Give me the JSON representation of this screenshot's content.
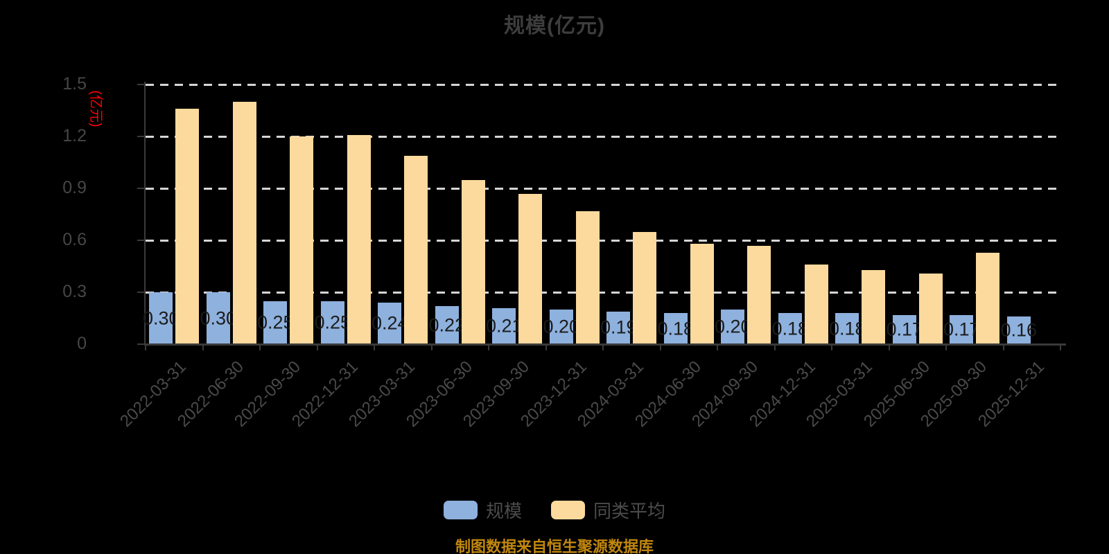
{
  "title": "规模(亿元)",
  "caption": "制图数据来自恒生聚源数据库",
  "y_axis": {
    "unit_label": "(亿元)",
    "tick_values": [
      0,
      0.3,
      0.6,
      0.9,
      1.2,
      1.5
    ],
    "tick_labels": [
      "0",
      "0.3",
      "0.6",
      "0.9",
      "1.2",
      "1.5"
    ]
  },
  "legend": {
    "items": [
      {
        "label": "规模",
        "color": "#8EB1DE"
      },
      {
        "label": "同类平均",
        "color": "#FCDA9E"
      }
    ]
  },
  "colors": {
    "background": "#000000",
    "title_text": "#3D3D3D",
    "axis_line": "#3A3A3A",
    "tick_text": "#464646",
    "x_label_text": "#4A4A4A",
    "gridline": "#D6D6D6",
    "bar_scale": "#8EB1DE",
    "bar_peer": "#FCDA9E",
    "bar_value_text": "#1C1C1C",
    "y_unit_text": "#FF0000",
    "legend_text": "#4C4C4C",
    "caption_text": "#C1870D"
  },
  "chart_data": {
    "type": "bar",
    "title": "规模(亿元)",
    "xlabel": "",
    "ylabel": "(亿元)",
    "ylim": [
      0,
      1.5
    ],
    "grid": "horizontal-dashed",
    "legend_position": "bottom",
    "categories": [
      "2022-03-31",
      "2022-06-30",
      "2022-09-30",
      "2022-12-31",
      "2023-03-31",
      "2023-06-30",
      "2023-09-30",
      "2023-12-31",
      "2024-03-31",
      "2024-06-30",
      "2024-09-30",
      "2024-12-31",
      "2025-03-31",
      "2025-06-30",
      "2025-09-30",
      "2025-12-31"
    ],
    "series": [
      {
        "name": "规模",
        "values": [
          0.3,
          0.3,
          0.25,
          0.25,
          0.24,
          0.22,
          0.21,
          0.2,
          0.19,
          0.18,
          0.2,
          0.18,
          0.18,
          0.17,
          0.17,
          0.16
        ],
        "labels": [
          "0.30",
          "0.30",
          "0.25",
          "0.25",
          "0.24",
          "0.22",
          "0.21",
          "0.20",
          "0.19",
          "0.18",
          "0.20",
          "0.18",
          "0.18",
          "0.17",
          "0.17",
          "0.16"
        ]
      },
      {
        "name": "同类平均",
        "values": [
          1.36,
          1.4,
          1.2,
          1.21,
          1.09,
          0.95,
          0.87,
          0.77,
          0.65,
          0.58,
          0.57,
          0.46,
          0.43,
          0.41,
          0.53,
          null
        ]
      }
    ]
  }
}
